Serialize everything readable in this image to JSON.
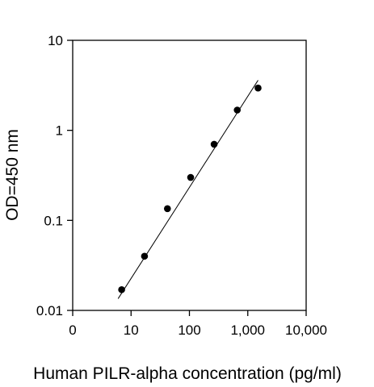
{
  "chart_data": {
    "type": "scatter",
    "title": "",
    "xlabel": "Human PILR-alpha concentration (pg/ml)",
    "ylabel": "OD=450 nm",
    "xscale": "log",
    "yscale": "log",
    "xlim": [
      1,
      10000
    ],
    "ylim": [
      0.01,
      10
    ],
    "grid": false,
    "legend": "none",
    "x_ticks": [
      {
        "value": 1,
        "label": "0"
      },
      {
        "value": 10,
        "label": "10"
      },
      {
        "value": 100,
        "label": "100"
      },
      {
        "value": 1000,
        "label": "1,000"
      },
      {
        "value": 10000,
        "label": "10,000"
      }
    ],
    "y_ticks": [
      {
        "value": 0.01,
        "label": "0.01"
      },
      {
        "value": 0.1,
        "label": "0.1"
      },
      {
        "value": 1,
        "label": "1"
      },
      {
        "value": 10,
        "label": "10"
      }
    ],
    "series": [
      {
        "x": [
          6.9,
          17,
          42,
          105,
          265,
          660,
          1500
        ],
        "y": [
          0.017,
          0.04,
          0.135,
          0.3,
          0.7,
          1.68,
          2.95
        ]
      }
    ],
    "fit_line": {
      "x": [
        6.0,
        1500
      ],
      "y": [
        0.0135,
        3.6
      ]
    },
    "colors": {
      "points": "#000000",
      "line": "#000000",
      "axes": "#000000"
    }
  }
}
